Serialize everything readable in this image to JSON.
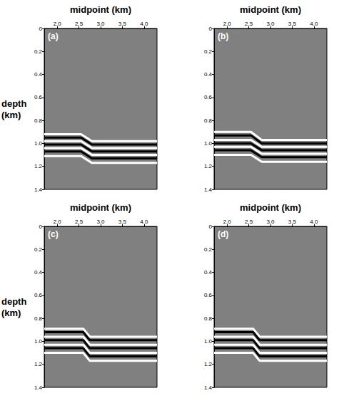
{
  "chart_data": [
    {
      "type": "line",
      "title": "(a)",
      "xlabel": "midpoint (km)",
      "ylabel": "depth (km)",
      "xlim": [
        1.7,
        4.3
      ],
      "xticks": [
        {
          "value": 2,
          "label": "2.0"
        },
        2.5,
        {
          "value": 3,
          "label": "3.0"
        },
        3.5,
        {
          "value": 4,
          "label": "4.0"
        }
      ],
      "ylim": [
        0,
        1.4
      ],
      "yticks": [
        0,
        0.2,
        0.4,
        0.6,
        0.8,
        {
          "value": 1,
          "label": "1.0"
        },
        1.2,
        1.4
      ],
      "grid": false,
      "x": [
        1.7,
        2.55,
        2.8,
        4.3
      ],
      "series": [
        {
          "color": "#ffffff",
          "values": [
            0.92,
            0.92,
            0.98,
            0.98
          ]
        },
        {
          "color": "#000000",
          "values": [
            0.95,
            0.95,
            1.01,
            1.01
          ]
        },
        {
          "color": "#ffffff",
          "values": [
            0.98,
            0.98,
            1.04,
            1.04
          ]
        },
        {
          "color": "#000000",
          "values": [
            1.01,
            1.01,
            1.07,
            1.07
          ]
        },
        {
          "color": "#ffffff",
          "values": [
            1.04,
            1.04,
            1.1,
            1.1
          ]
        },
        {
          "color": "#000000",
          "values": [
            1.07,
            1.07,
            1.13,
            1.13
          ]
        },
        {
          "color": "#ffffff",
          "values": [
            1.11,
            1.11,
            1.17,
            1.17
          ]
        }
      ]
    },
    {
      "type": "line",
      "title": "(b)",
      "xlabel": "midpoint (km)",
      "xlim": [
        1.7,
        4.3
      ],
      "xticks": [
        {
          "value": 2,
          "label": "2.0"
        },
        2.5,
        {
          "value": 3,
          "label": "3.0"
        },
        3.5,
        {
          "value": 4,
          "label": "4.0"
        }
      ],
      "ylim": [
        0,
        1.4
      ],
      "yticks": [
        0,
        0.2,
        0.4,
        0.6,
        0.8,
        {
          "value": 1,
          "label": "1.0"
        },
        1.2,
        1.4
      ],
      "grid": false,
      "x": [
        1.7,
        2.55,
        2.8,
        4.3
      ],
      "series": [
        {
          "color": "#ffffff",
          "values": [
            0.9,
            0.9,
            0.97,
            0.97
          ]
        },
        {
          "color": "#000000",
          "values": [
            0.93,
            0.93,
            1.0,
            1.0
          ]
        },
        {
          "color": "#ffffff",
          "values": [
            0.97,
            0.97,
            1.03,
            1.03
          ]
        },
        {
          "color": "#000000",
          "values": [
            1.0,
            1.0,
            1.06,
            1.06
          ]
        },
        {
          "color": "#ffffff",
          "values": [
            1.03,
            1.03,
            1.09,
            1.09
          ]
        },
        {
          "color": "#000000",
          "values": [
            1.06,
            1.06,
            1.12,
            1.12
          ]
        },
        {
          "color": "#ffffff",
          "values": [
            1.1,
            1.1,
            1.16,
            1.16
          ]
        }
      ]
    },
    {
      "type": "line",
      "title": "(c)",
      "xlabel": "midpoint (km)",
      "ylabel": "depth (km)",
      "xlim": [
        1.7,
        4.3
      ],
      "xticks": [
        {
          "value": 2,
          "label": "2.0"
        },
        2.5,
        {
          "value": 3,
          "label": "3.0"
        },
        3.5,
        {
          "value": 4,
          "label": "4.0"
        }
      ],
      "ylim": [
        0,
        1.4
      ],
      "yticks": [
        0,
        0.2,
        0.4,
        0.6,
        0.8,
        {
          "value": 1,
          "label": "1.0"
        },
        1.2,
        1.4
      ],
      "grid": false,
      "x": [
        1.7,
        2.6,
        2.75,
        4.3
      ],
      "series": [
        {
          "color": "#ffffff",
          "values": [
            0.89,
            0.89,
            0.96,
            0.96
          ]
        },
        {
          "color": "#000000",
          "values": [
            0.92,
            0.92,
            0.99,
            0.99
          ]
        },
        {
          "color": "#ffffff",
          "values": [
            0.96,
            0.96,
            1.03,
            1.03
          ]
        },
        {
          "color": "#000000",
          "values": [
            0.99,
            0.99,
            1.06,
            1.06
          ]
        },
        {
          "color": "#ffffff",
          "values": [
            1.03,
            1.03,
            1.1,
            1.1
          ]
        },
        {
          "color": "#000000",
          "values": [
            1.06,
            1.06,
            1.13,
            1.13
          ]
        },
        {
          "color": "#ffffff",
          "values": [
            1.1,
            1.1,
            1.17,
            1.17
          ]
        }
      ]
    },
    {
      "type": "line",
      "title": "(d)",
      "xlabel": "midpoint (km)",
      "xlim": [
        1.7,
        4.3
      ],
      "xticks": [
        {
          "value": 2,
          "label": "2.0"
        },
        2.5,
        {
          "value": 3,
          "label": "3.0"
        },
        3.5,
        {
          "value": 4,
          "label": "4.0"
        }
      ],
      "ylim": [
        0,
        1.4
      ],
      "yticks": [
        0,
        0.2,
        0.4,
        0.6,
        0.8,
        {
          "value": 1,
          "label": "1.0"
        },
        1.2,
        1.4
      ],
      "grid": false,
      "x": [
        1.7,
        2.6,
        2.75,
        4.3
      ],
      "series": [
        {
          "color": "#ffffff",
          "values": [
            0.89,
            0.89,
            0.96,
            0.96
          ]
        },
        {
          "color": "#000000",
          "values": [
            0.92,
            0.92,
            0.99,
            0.99
          ]
        },
        {
          "color": "#ffffff",
          "values": [
            0.96,
            0.96,
            1.03,
            1.03
          ]
        },
        {
          "color": "#000000",
          "values": [
            0.99,
            0.99,
            1.06,
            1.06
          ]
        },
        {
          "color": "#ffffff",
          "values": [
            1.03,
            1.03,
            1.1,
            1.1
          ]
        },
        {
          "color": "#000000",
          "values": [
            1.06,
            1.06,
            1.13,
            1.13
          ]
        },
        {
          "color": "#ffffff",
          "values": [
            1.1,
            1.1,
            1.17,
            1.17
          ]
        }
      ]
    }
  ]
}
